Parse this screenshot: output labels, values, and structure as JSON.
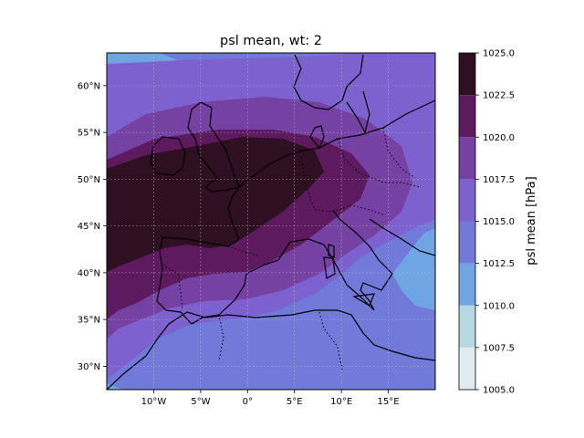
{
  "title": "psl mean, wt: 2",
  "map": {
    "lon_range": [
      -15,
      20
    ],
    "lat_range": [
      27.5,
      63.5
    ],
    "x_ticks": [
      {
        "value": -10,
        "label": "10°W"
      },
      {
        "value": -5,
        "label": "5°W"
      },
      {
        "value": 0,
        "label": "0°"
      },
      {
        "value": 5,
        "label": "5°E"
      },
      {
        "value": 10,
        "label": "10°E"
      },
      {
        "value": 15,
        "label": "15°E"
      }
    ],
    "y_ticks": [
      {
        "value": 30,
        "label": "30°N"
      },
      {
        "value": 35,
        "label": "35°N"
      },
      {
        "value": 40,
        "label": "40°N"
      },
      {
        "value": 45,
        "label": "45°N"
      },
      {
        "value": 50,
        "label": "50°N"
      },
      {
        "value": 55,
        "label": "55°N"
      },
      {
        "value": 60,
        "label": "60°N"
      }
    ],
    "gridlines": true
  },
  "colorbar": {
    "label": "psl mean [hPa]",
    "levels": [
      {
        "value": 1005.0,
        "label": "1005.0"
      },
      {
        "value": 1007.5,
        "label": "1007.5"
      },
      {
        "value": 1010.0,
        "label": "1010.0"
      },
      {
        "value": 1012.5,
        "label": "1012.5"
      },
      {
        "value": 1015.0,
        "label": "1015.0"
      },
      {
        "value": 1017.5,
        "label": "1017.5"
      },
      {
        "value": 1020.0,
        "label": "1020.0"
      },
      {
        "value": 1022.5,
        "label": "1022.5"
      },
      {
        "value": 1025.0,
        "label": "1025.0"
      }
    ],
    "colors": [
      "#e0eced",
      "#b6d9e0",
      "#70a5e4",
      "#7179d9",
      "#7d61cf",
      "#7542a4",
      "#5d1a5f",
      "#2f1022"
    ]
  }
}
